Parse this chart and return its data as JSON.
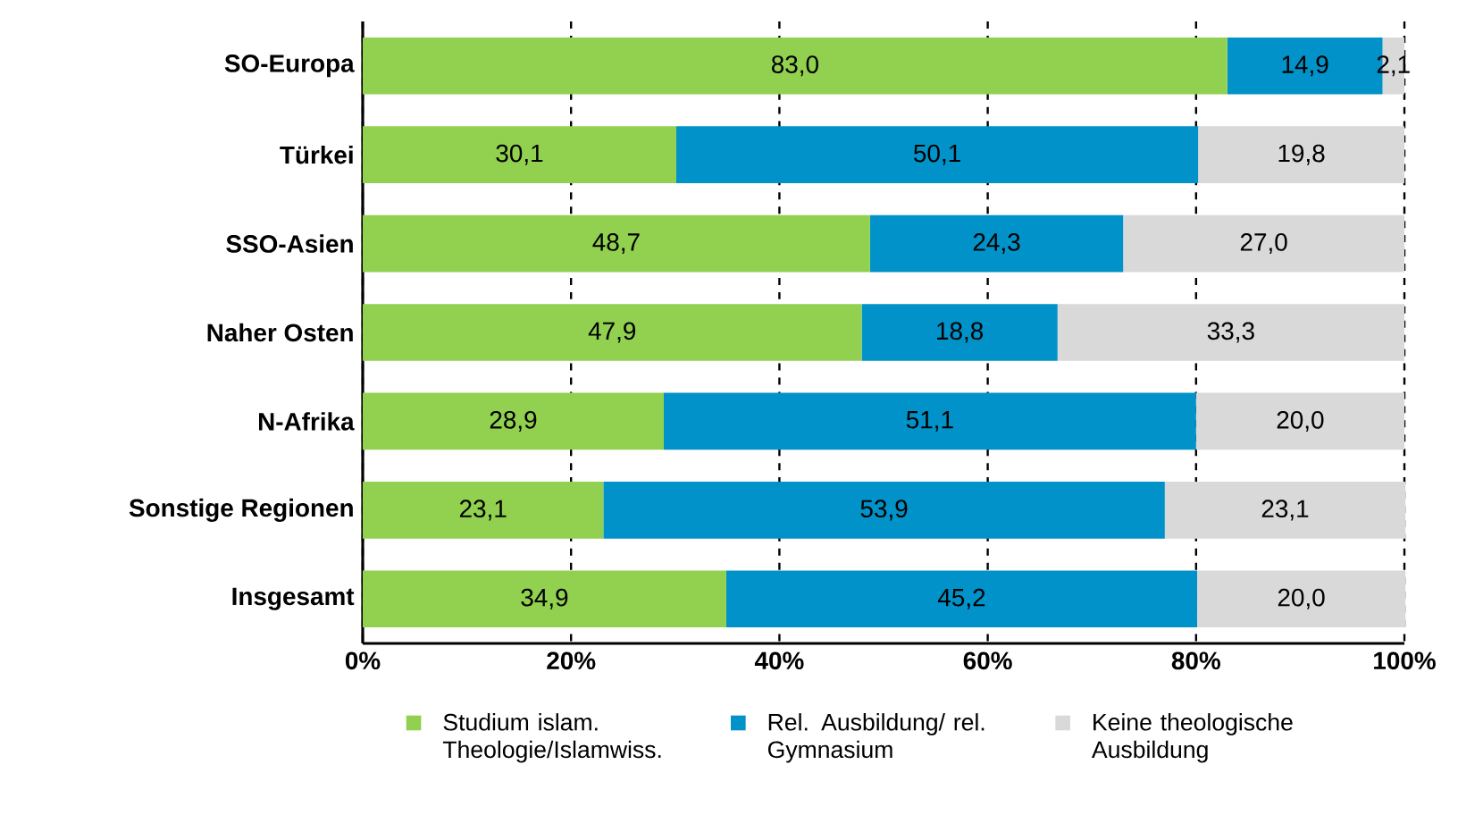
{
  "chart_data": {
    "type": "bar",
    "orientation": "horizontal",
    "stacked": true,
    "categories": [
      "SO-Europa",
      "Türkei",
      "SSO-Asien",
      "Naher Osten",
      "N-Afrika",
      "Sonstige Regionen",
      "Insgesamt"
    ],
    "series": [
      {
        "name": "Studium islam. Theologie/Islamwiss.",
        "color": "#92d050",
        "values": [
          83.0,
          30.1,
          48.7,
          47.9,
          28.9,
          23.1,
          34.9
        ],
        "value_labels": [
          "83,0",
          "30,1",
          "48,7",
          "47,9",
          "28,9",
          "23,1",
          "34,9"
        ]
      },
      {
        "name": "Rel. Ausbildung/ rel. Gymnasium",
        "color": "#0092c8",
        "values": [
          14.9,
          50.1,
          24.3,
          18.8,
          51.1,
          53.9,
          45.2
        ],
        "value_labels": [
          "14,9",
          "50,1",
          "24,3",
          "18,8",
          "51,1",
          "53,9",
          "45,2"
        ]
      },
      {
        "name": "Keine theologische Ausbildung",
        "color": "#d9d9d9",
        "values": [
          2.1,
          19.8,
          27.0,
          33.3,
          20.0,
          23.1,
          20.0
        ],
        "value_labels": [
          "2,1",
          "19,8",
          "27,0",
          "33,3",
          "20,0",
          "23,1",
          "20,0"
        ]
      }
    ],
    "xlim": [
      0,
      100
    ],
    "xticks": [
      {
        "value": 0,
        "label": "0%"
      },
      {
        "value": 20,
        "label": "20%"
      },
      {
        "value": 40,
        "label": "40%"
      },
      {
        "value": 60,
        "label": "60%"
      },
      {
        "value": 80,
        "label": "80%"
      },
      {
        "value": 100,
        "label": "100%"
      }
    ],
    "grid": "x",
    "legend": "bottom"
  }
}
